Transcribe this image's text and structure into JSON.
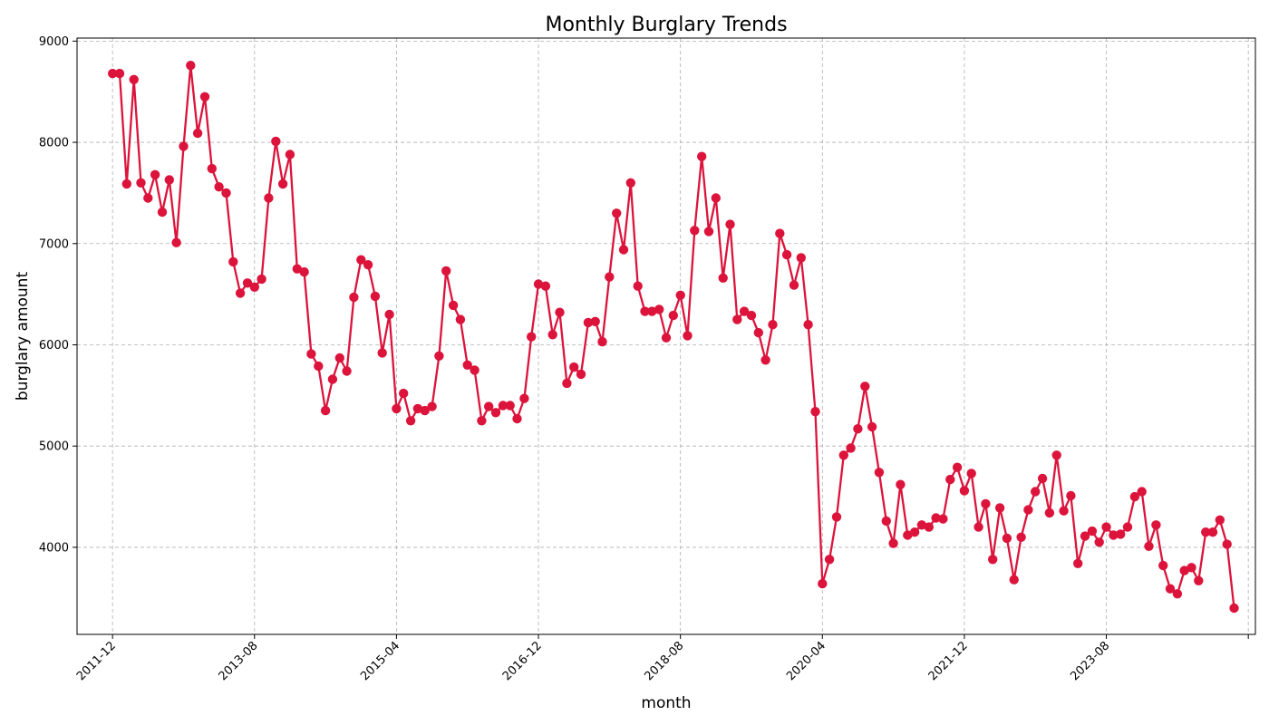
{
  "chart_data": {
    "type": "line",
    "title": "Monthly Burglary Trends",
    "xlabel": "month",
    "ylabel": "burglary amount",
    "x_tick_labels": [
      "2011-12",
      "2013-08",
      "2015-04",
      "2016-12",
      "2018-08",
      "2020-04",
      "2021-12",
      "2023-08"
    ],
    "y_tick_labels": [
      "4000",
      "5000",
      "6000",
      "7000",
      "8000",
      "9000"
    ],
    "y_ticks": [
      4000,
      5000,
      6000,
      7000,
      8000,
      9000
    ],
    "ylim": [
      3140,
      9030
    ],
    "xlim": [
      "2011-07",
      "2025-05"
    ],
    "grid": true,
    "color": "#dc143c",
    "x_start": "2011-12",
    "series": [
      {
        "values": [
          8680,
          8680,
          7590,
          8620,
          7600,
          7450,
          7680,
          7310,
          7630,
          7010,
          7960,
          8760,
          8090,
          8450,
          7740,
          7560,
          7500,
          6820,
          6510,
          6610,
          6570,
          6650,
          7450,
          8010,
          7590,
          7880,
          6750,
          6720,
          5910,
          5790,
          5350,
          5660,
          5870,
          5740,
          6470,
          6840,
          6790,
          6480,
          5920,
          6300,
          5370,
          5520,
          5250,
          5370,
          5350,
          5390,
          5890,
          6730,
          6390,
          6250,
          5800,
          5750,
          5250,
          5390,
          5330,
          5400,
          5400,
          5270,
          5470,
          6080,
          6600,
          6580,
          6100,
          6320,
          5620,
          5780,
          5710,
          6220,
          6230,
          6030,
          6670,
          7300,
          6940,
          7600,
          6580,
          6330,
          6330,
          6350,
          6070,
          6290,
          6490,
          6090,
          7130,
          7860,
          7120,
          7450,
          6660,
          7190,
          6250,
          6330,
          6290,
          6120,
          5850,
          6200,
          7100,
          6890,
          6590,
          6860,
          6200,
          5340,
          3640,
          3880,
          4300,
          4910,
          4980,
          5170,
          5590,
          5190,
          4740,
          4260,
          4040,
          4620,
          4120,
          4150,
          4220,
          4200,
          4290,
          4280,
          4670,
          4790,
          4560,
          4730,
          4200,
          4430,
          3880,
          4390,
          4090,
          3680,
          4100,
          4370,
          4550,
          4680,
          4340,
          4910,
          4360,
          4510,
          3840,
          4110,
          4160,
          4050,
          4200,
          4120,
          4130,
          4200,
          4500,
          4550,
          4010,
          4220,
          3820,
          3590,
          3540,
          3770,
          3800,
          3670,
          4150,
          4150,
          4270,
          4030,
          3400
        ]
      }
    ]
  }
}
